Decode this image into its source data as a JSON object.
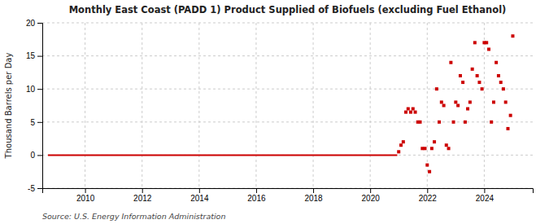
{
  "chart_data": {
    "type": "scatter",
    "title": "Monthly East Coast (PADD 1) Product Supplied of Biofuels (excluding Fuel Ethanol)",
    "y_label": "Thousand Barrels per Day",
    "annotations": [
      "Source: U.S. Energy Information Administration"
    ],
    "xlim": [
      2008.5,
      2025.7
    ],
    "xticks": [
      2010,
      2012,
      2014,
      2016,
      2018,
      2020,
      2022,
      2024
    ],
    "ylim": [
      -5,
      20
    ],
    "yticks": [
      -5,
      0,
      5,
      10,
      15,
      20
    ],
    "grid": true,
    "series": [
      {
        "type": "line",
        "color": "#cc0000",
        "x": [
          2008.7,
          2020.95
        ],
        "values": [
          0,
          0
        ]
      },
      {
        "type": "scatter",
        "marker": "square",
        "color": "#cc0000",
        "x": [
          2021.0,
          2021.08,
          2021.16,
          2021.25,
          2021.33,
          2021.42,
          2021.5,
          2021.58,
          2021.67,
          2021.75,
          2021.83,
          2021.92,
          2022.0,
          2022.08,
          2022.16,
          2022.25,
          2022.33,
          2022.42,
          2022.5,
          2022.58,
          2022.67,
          2022.75,
          2022.83,
          2022.92,
          2023.0,
          2023.08,
          2023.16,
          2023.25,
          2023.33,
          2023.42,
          2023.5,
          2023.58,
          2023.67,
          2023.75,
          2023.83,
          2023.92,
          2024.0,
          2024.08,
          2024.16,
          2024.25,
          2024.33,
          2024.42,
          2024.5,
          2024.58,
          2024.67,
          2024.75,
          2024.83,
          2024.92,
          2025.0
        ],
        "values": [
          0.5,
          1.5,
          2.0,
          6.5,
          7.0,
          6.5,
          7.0,
          6.5,
          5.0,
          5.0,
          1.0,
          1.0,
          -1.5,
          -2.5,
          1.0,
          2.0,
          10.0,
          5.0,
          8.0,
          7.5,
          1.5,
          1.0,
          14.0,
          5.0,
          8.0,
          7.5,
          12.0,
          11.0,
          5.0,
          7.0,
          8.0,
          13.0,
          17.0,
          12.0,
          11.0,
          10.0,
          17.0,
          17.0,
          16.0,
          5.0,
          8.0,
          14.0,
          12.0,
          11.0,
          10.0,
          8.0,
          4.0,
          6.0,
          18.0
        ]
      }
    ]
  }
}
